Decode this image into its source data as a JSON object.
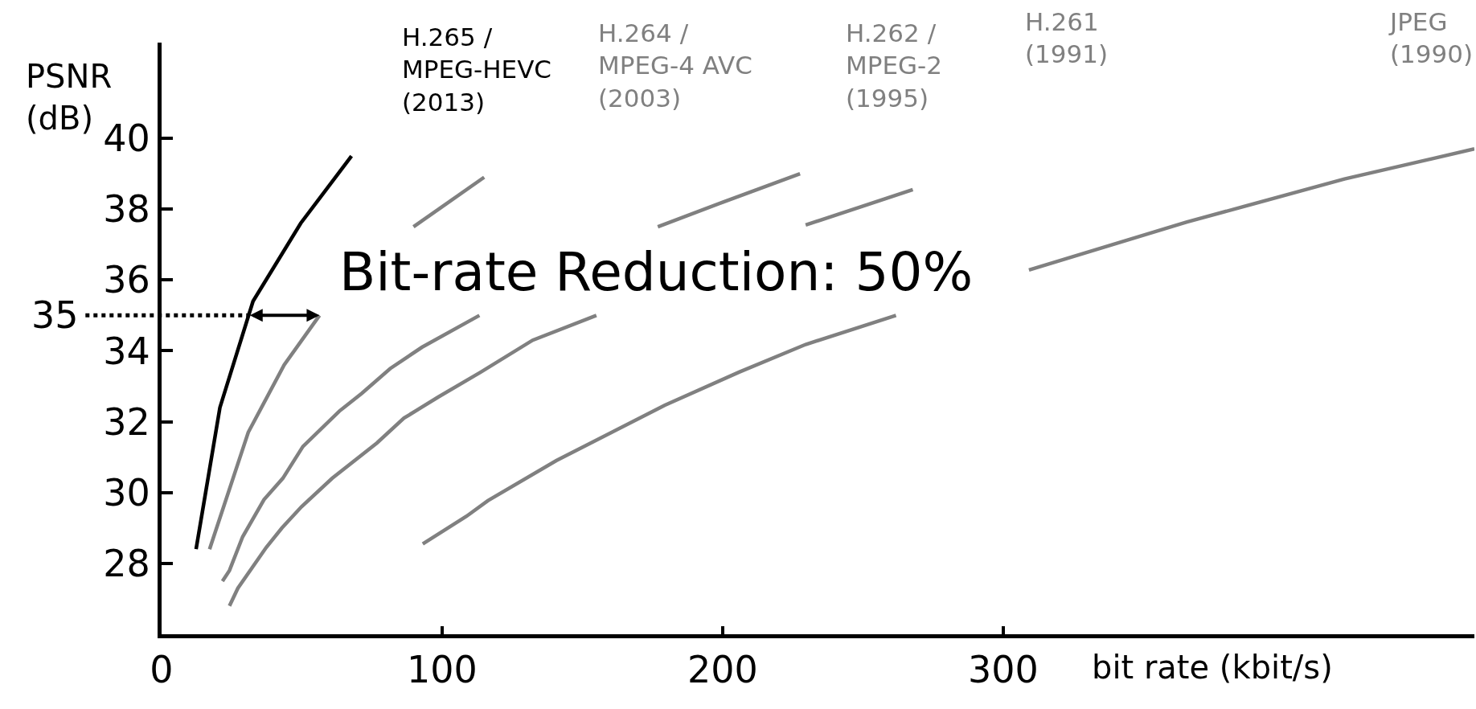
{
  "chart_data": {
    "type": "line",
    "xlabel": "bit rate (kbit/s)",
    "ylabel": "PSNR\n(dB)",
    "xlim": [
      0,
      468
    ],
    "xticks": [
      0,
      100,
      200,
      300
    ],
    "ylim": [
      26,
      42.7
    ],
    "yticks": [
      28,
      30,
      32,
      34,
      36,
      38,
      40
    ],
    "legend": false,
    "marker": "none",
    "line_style": "solid",
    "series": [
      {
        "color": "#000000",
        "x": [
          12.3,
          20.8,
          32.6,
          49.6,
          67.7
        ],
        "values": [
          28.4,
          32.4,
          35.4,
          37.6,
          39.5
        ]
      },
      {
        "color": "#808080",
        "x": [
          17.1,
          30.9,
          43.7,
          56.3,
          70,
          89.8,
          115.0
        ],
        "values": [
          28.4,
          31.7,
          33.6,
          35.0,
          null,
          37.5,
          38.9
        ]
      },
      {
        "color": "#808080",
        "x": [
          21.7,
          24.2,
          28.9,
          36.5,
          43.2,
          50.4,
          63.4,
          71.4,
          81.5,
          92.8,
          113.3,
          150,
          176.9,
          200.2,
          227.6
        ],
        "values": [
          27.5,
          27.8,
          28.75,
          29.8,
          30.4,
          31.3,
          32.3,
          32.8,
          33.5,
          34.1,
          35.0,
          null,
          37.5,
          38.2,
          39.0
        ]
      },
      {
        "color": "#808080",
        "x": [
          24.2,
          27.2,
          37.3,
          42.9,
          49.9,
          60.8,
          76.8,
          86.4,
          98.7,
          113.8,
          132.3,
          155.0,
          200,
          229.6,
          267.8
        ],
        "values": [
          26.8,
          27.3,
          28.45,
          29.0,
          29.6,
          30.4,
          31.4,
          32.1,
          32.7,
          33.4,
          34.3,
          35.0,
          null,
          37.55,
          38.55
        ]
      },
      {
        "color": "#808080",
        "x": [
          93.1,
          108.7,
          116.3,
          140.7,
          179.3,
          205.9,
          229.6,
          261.8,
          290,
          309.2,
          365.3,
          421.7,
          468.0
        ],
        "values": [
          28.55,
          29.33,
          29.77,
          30.9,
          32.46,
          33.4,
          34.18,
          35.0,
          null,
          36.28,
          37.63,
          38.85,
          39.7
        ]
      }
    ],
    "ref_lines": [
      {
        "axis": "y",
        "value": 35,
        "label": "35",
        "line_style": "dotted",
        "color": "#000000"
      }
    ],
    "annotations": [
      "H.265 /\nMPEG-HEVC\n(2013)",
      "H.264 /\nMPEG-4 AVC\n(2003)",
      "H.262 /\nMPEG-2\n(1995)",
      "H.261\n(1991)",
      "JPEG\n(1990)",
      {
        "text": "Bit-rate Reduction: 50%",
        "x": 56.3,
        "y": 35
      }
    ]
  }
}
